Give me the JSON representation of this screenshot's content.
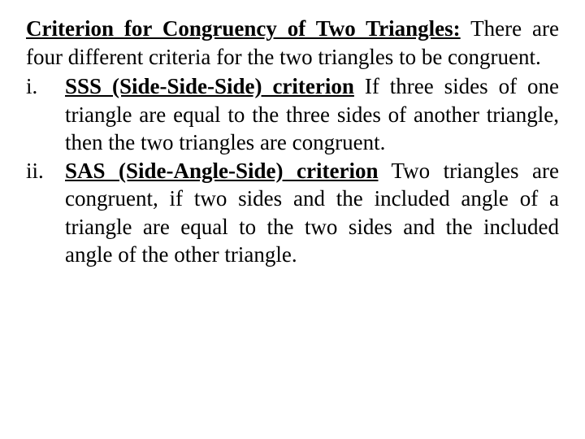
{
  "heading": "Criterion for Congruency of Two Triangles:",
  "intro_rest": " There are four different criteria for the two triangles to be congruent.",
  "items": [
    {
      "marker": "i.",
      "term": "SSS (Side-Side-Side) criterion",
      "rest": " If three sides of one triangle are equal to the three sides of another triangle, then the two triangles are congruent."
    },
    {
      "marker": "ii.",
      "term": "SAS (Side-Angle-Side) criterion",
      "rest": " Two triangles are congruent, if two sides and the included angle of a triangle are equal to the two sides and the included angle of the other triangle."
    }
  ],
  "colors": {
    "background": "#ffffff",
    "text": "#000000"
  },
  "typography": {
    "font_family": "Times New Roman",
    "font_size_pt": 20,
    "line_height": 1.28,
    "alignment": "justify"
  }
}
